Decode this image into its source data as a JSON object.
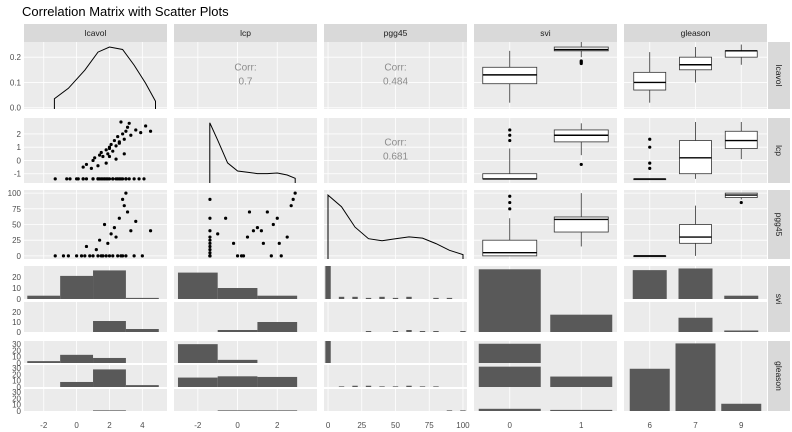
{
  "title": "Correlation Matrix with Scatter Plots",
  "variables": [
    "lcavol",
    "lcp",
    "pgg45",
    "svi",
    "gleason"
  ],
  "svi_levels": [
    "0",
    "1"
  ],
  "colors": {
    "panel": "#ebebeb",
    "grid": "#ffffff",
    "strip": "#d9d9d9",
    "bar": "#595959",
    "point": "#000000",
    "corr_text": "#8c8c8c"
  },
  "chart_data": {
    "type": "scatter",
    "title": "Correlation Matrix with Scatter Plots",
    "correlations": [
      {
        "row": "lcavol",
        "col": "lcp",
        "label": "Corr:",
        "value": "0.7"
      },
      {
        "row": "lcavol",
        "col": "pgg45",
        "label": "Corr:",
        "value": "0.484"
      },
      {
        "row": "lcp",
        "col": "pgg45",
        "label": "Corr:",
        "value": "0.681"
      }
    ],
    "axes": {
      "x": {
        "lcavol": {
          "ticks": [
            "-2",
            "0",
            "2",
            "4"
          ],
          "range": [
            -3.2,
            5.5
          ]
        },
        "lcp": {
          "ticks": [
            "-2",
            "0",
            "2"
          ],
          "range": [
            -3.2,
            4.0
          ]
        },
        "pgg45": {
          "ticks": [
            "0",
            "25",
            "50",
            "75",
            "100"
          ],
          "range": [
            -3,
            103
          ]
        },
        "svi": {
          "ticks": [
            "0",
            "1"
          ]
        },
        "gleason": {
          "ticks": [
            "6",
            "7",
            "9"
          ]
        }
      },
      "y": {
        "lcavol": {
          "ticks": [
            "0.0",
            "0.1",
            "0.2"
          ],
          "range": [
            -0.005,
            0.26
          ]
        },
        "lcp": {
          "ticks": [
            "-1",
            "0",
            "1",
            "2"
          ],
          "range": [
            -1.7,
            3.2
          ]
        },
        "pgg45": {
          "ticks": [
            "0",
            "25",
            "50",
            "75",
            "100"
          ],
          "range": [
            -5,
            105
          ]
        },
        "svi_0": {
          "ticks": [
            "0",
            "10",
            "20"
          ]
        },
        "svi_1": {
          "ticks": [
            "0",
            "10",
            "20"
          ]
        },
        "gleason_6": {
          "ticks": [
            "0",
            "10",
            "20",
            "30"
          ]
        },
        "gleason_7": {
          "ticks": [
            "0",
            "10",
            "20",
            "30"
          ]
        },
        "gleason_9": {
          "ticks": [
            "0",
            "10",
            "20",
            "30"
          ]
        }
      }
    },
    "density": {
      "lcavol": {
        "x": [
          -1.35,
          -0.5,
          0.5,
          1.3,
          2.0,
          2.8,
          3.5,
          4.2,
          4.8
        ],
        "y": [
          0.04,
          0.08,
          0.15,
          0.22,
          0.24,
          0.23,
          0.17,
          0.1,
          0.03
        ]
      },
      "lcp": {
        "x": [
          -1.4,
          -1.0,
          -0.5,
          0.0,
          0.5,
          1.0,
          1.5,
          2.0,
          2.5,
          2.9
        ],
        "y": [
          0.45,
          0.32,
          0.15,
          0.09,
          0.08,
          0.07,
          0.07,
          0.075,
          0.06,
          0.035
        ]
      },
      "pgg45": {
        "x": [
          0,
          10,
          20,
          30,
          40,
          50,
          60,
          70,
          80,
          90,
          100
        ],
        "y": [
          0.022,
          0.018,
          0.011,
          0.007,
          0.0063,
          0.007,
          0.0076,
          0.0072,
          0.0053,
          0.003,
          0.0015
        ]
      }
    },
    "scatter": {
      "lcp_vs_lcavol": {
        "x": [
          -1.3,
          -0.6,
          -0.4,
          0.0,
          0.1,
          0.4,
          0.4,
          0.6,
          1.0,
          1.0,
          1.3,
          1.3,
          1.4,
          1.5,
          1.6,
          1.7,
          1.8,
          1.9,
          2.0,
          2.2,
          2.2,
          2.4,
          2.5,
          2.6,
          2.7,
          2.8,
          3.0,
          3.0,
          3.2,
          3.5,
          3.8,
          4.1,
          1.8,
          2.4,
          2.0,
          2.9
        ],
        "y": [
          -1.39,
          -1.39,
          -1.39,
          -1.39,
          -1.39,
          -1.39,
          -1.39,
          -1.39,
          -1.39,
          -1.39,
          -1.39,
          -1.39,
          -1.39,
          -1.39,
          -1.39,
          -1.39,
          -1.39,
          -1.39,
          -1.39,
          -1.39,
          -1.39,
          -1.39,
          -1.39,
          -1.39,
          -1.39,
          -1.39,
          -1.39,
          -1.39,
          -1.39,
          -1.39,
          -1.39,
          -1.39,
          -0.2,
          0.1,
          0.3,
          0.5
        ]
      },
      "lcp_vs_lcavol_upper": {
        "x": [
          0.4,
          0.6,
          0.9,
          1.0,
          1.1,
          1.3,
          1.4,
          1.5,
          1.6,
          1.8,
          1.9,
          2.0,
          2.1,
          2.2,
          2.3,
          2.4,
          2.5,
          2.6,
          2.8,
          2.9,
          3.0,
          3.1,
          3.3,
          3.6,
          3.9,
          4.2,
          4.5,
          2.7,
          3.2,
          2.0,
          2.6
        ],
        "y": [
          -0.5,
          -0.3,
          -0.6,
          0.0,
          0.2,
          -0.4,
          0.4,
          0.6,
          0.3,
          0.8,
          0.5,
          1.0,
          1.2,
          0.7,
          1.5,
          1.1,
          1.8,
          1.3,
          2.0,
          1.6,
          2.2,
          2.5,
          1.9,
          2.3,
          2.1,
          2.6,
          2.2,
          2.9,
          2.8,
          0.9,
          1.4
        ]
      },
      "pgg45_vs_lcavol": {
        "x": [
          -1.3,
          -0.8,
          -0.5,
          0.0,
          0.3,
          0.5,
          0.8,
          1.0,
          1.3,
          1.5,
          1.6,
          1.8,
          2.0,
          2.2,
          2.5,
          2.7,
          2.8,
          3.0,
          3.5,
          4.0,
          1.2,
          1.9,
          2.4,
          3.3,
          0.6,
          1.7,
          2.6,
          2.9,
          3.1,
          1.4,
          2.1,
          2.3,
          3.6,
          4.5,
          2.8,
          3.0
        ],
        "y": [
          0,
          0,
          0,
          0,
          0,
          0,
          0,
          0,
          0,
          0,
          0,
          0,
          0,
          0,
          0,
          0,
          0,
          0,
          0,
          0,
          10,
          20,
          30,
          40,
          15,
          50,
          60,
          80,
          70,
          25,
          35,
          45,
          55,
          40,
          90,
          100
        ]
      },
      "pgg45_vs_lcp": {
        "x": [
          -1.39,
          -1.39,
          -1.39,
          -1.39,
          -1.39,
          -1.39,
          -1.39,
          -1.39,
          -1.39,
          -1.39,
          -1.39,
          -1.39,
          -1.39,
          -0.6,
          -0.2,
          0.0,
          0.3,
          0.5,
          0.8,
          1.0,
          1.3,
          1.5,
          1.8,
          2.0,
          2.2,
          2.5,
          2.7,
          2.9,
          0.6,
          1.2,
          -1.0,
          2.1,
          2.8,
          0.2,
          1.7
        ],
        "y": [
          0,
          0,
          0,
          0,
          5,
          10,
          15,
          20,
          25,
          30,
          40,
          60,
          90,
          60,
          20,
          0,
          0,
          30,
          40,
          45,
          20,
          70,
          50,
          60,
          0,
          30,
          80,
          100,
          70,
          40,
          35,
          20,
          90,
          0,
          0
        ]
      }
    },
    "boxplots": {
      "svi_lcavol": [
        {
          "level": "0",
          "min": 0.02,
          "q1": 0.095,
          "median": 0.13,
          "q3": 0.16,
          "max": 0.225
        },
        {
          "level": "1",
          "min": 0.2,
          "q1": 0.225,
          "median": 0.23,
          "q3": 0.24,
          "max": 0.26,
          "outliers": [
            0.175,
            0.18,
            0.185
          ]
        }
      ],
      "gleason_lcavol": [
        {
          "level": "6",
          "min": 0.02,
          "q1": 0.07,
          "median": 0.1,
          "q3": 0.14,
          "max": 0.22
        },
        {
          "level": "7",
          "min": 0.1,
          "q1": 0.15,
          "median": 0.17,
          "q3": 0.2,
          "max": 0.24
        },
        {
          "level": "9",
          "min": 0.17,
          "q1": 0.2,
          "median": 0.225,
          "q3": 0.225,
          "max": 0.25
        }
      ],
      "svi_lcp": [
        {
          "level": "0",
          "min": -1.39,
          "q1": -1.39,
          "median": -1.39,
          "q3": -1.0,
          "max": 0.9,
          "outliers": [
            1.5,
            1.9,
            2.3
          ]
        },
        {
          "level": "1",
          "min": 0.4,
          "q1": 1.4,
          "median": 1.9,
          "q3": 2.3,
          "max": 2.8,
          "outliers": [
            -0.3
          ]
        }
      ],
      "gleason_lcp": [
        {
          "level": "6",
          "min": -1.39,
          "q1": -1.39,
          "median": -1.39,
          "q3": -1.39,
          "max": -1.39,
          "outliers": [
            -0.6,
            -0.2,
            1.0,
            1.6
          ]
        },
        {
          "level": "7",
          "min": -1.39,
          "q1": -1.0,
          "median": 0.2,
          "q3": 1.5,
          "max": 2.9
        },
        {
          "level": "9",
          "min": 0.1,
          "q1": 0.9,
          "median": 1.5,
          "q3": 2.2,
          "max": 2.9
        }
      ],
      "svi_pgg45": [
        {
          "level": "0",
          "min": 0,
          "q1": 0,
          "median": 5,
          "q3": 25,
          "max": 60,
          "outliers": [
            75,
            85,
            95
          ]
        },
        {
          "level": "1",
          "min": 15,
          "q1": 38,
          "median": 58,
          "q3": 62,
          "max": 100
        }
      ],
      "gleason_pgg45": [
        {
          "level": "6",
          "min": 0,
          "q1": 0,
          "median": 0,
          "q3": 0,
          "max": 0
        },
        {
          "level": "7",
          "min": 0,
          "q1": 20,
          "median": 30,
          "q3": 50,
          "max": 80
        },
        {
          "level": "9",
          "min": 90,
          "q1": 93,
          "median": 97,
          "q3": 100,
          "max": 100,
          "outliers": [
            85
          ]
        }
      ]
    },
    "bars": {
      "svi_counts": [
        {
          "level": "0",
          "value": 76
        },
        {
          "level": "1",
          "value": 21
        }
      ],
      "gleason_counts": [
        {
          "level": "6",
          "value": 35
        },
        {
          "level": "7",
          "value": 56
        },
        {
          "level": "9",
          "value": 6
        }
      ],
      "svi_by_gleason": [
        {
          "svi": "0",
          "gleason": "6",
          "value": 35
        },
        {
          "svi": "0",
          "gleason": "7",
          "value": 37
        },
        {
          "svi": "0",
          "gleason": "9",
          "value": 4
        },
        {
          "svi": "1",
          "gleason": "6",
          "value": 0
        },
        {
          "svi": "1",
          "gleason": "7",
          "value": 19
        },
        {
          "svi": "1",
          "gleason": "9",
          "value": 2
        }
      ],
      "gleason_by_svi": [
        {
          "gleason": "6",
          "svi": "0",
          "value": 35
        },
        {
          "gleason": "6",
          "svi": "1",
          "value": 0
        },
        {
          "gleason": "7",
          "svi": "0",
          "value": 37
        },
        {
          "gleason": "7",
          "svi": "1",
          "value": 19
        },
        {
          "gleason": "9",
          "svi": "0",
          "value": 4
        },
        {
          "gleason": "9",
          "svi": "1",
          "value": 2
        }
      ]
    },
    "histograms": {
      "lcavol_by_svi": {
        "0": [
          {
            "x0": -3.0,
            "x1": -1.0,
            "value": 3
          },
          {
            "x0": -1.0,
            "x1": 1.0,
            "value": 21
          },
          {
            "x0": 1.0,
            "x1": 3.0,
            "value": 26
          },
          {
            "x0": 3.0,
            "x1": 5.0,
            "value": 1
          }
        ],
        "1": [
          {
            "x0": 1.0,
            "x1": 3.0,
            "value": 11
          },
          {
            "x0": 3.0,
            "x1": 5.0,
            "value": 3
          }
        ]
      },
      "lcp_by_svi": {
        "0": [
          {
            "x0": -3.0,
            "x1": -1.0,
            "value": 24
          },
          {
            "x0": -1.0,
            "x1": 1.0,
            "value": 10
          },
          {
            "x0": 1.0,
            "x1": 3.0,
            "value": 3
          }
        ],
        "1": [
          {
            "x0": -1.0,
            "x1": 1.0,
            "value": 2
          },
          {
            "x0": 1.0,
            "x1": 3.0,
            "value": 10
          }
        ]
      },
      "lcavol_by_gleason": {
        "6": [
          {
            "x0": -3.0,
            "x1": -1.0,
            "value": 3
          },
          {
            "x0": -1.0,
            "x1": 1.0,
            "value": 13
          },
          {
            "x0": 1.0,
            "x1": 3.0,
            "value": 8
          }
        ],
        "7": [
          {
            "x0": -3.0,
            "x1": -1.0,
            "value": 0
          },
          {
            "x0": -1.0,
            "x1": 1.0,
            "value": 8
          },
          {
            "x0": 1.0,
            "x1": 3.0,
            "value": 28
          },
          {
            "x0": 3.0,
            "x1": 5.0,
            "value": 3
          }
        ],
        "9": [
          {
            "x0": 1.0,
            "x1": 3.0,
            "value": 1
          }
        ]
      },
      "lcp_by_gleason": {
        "6": [
          {
            "x0": -3.0,
            "x1": -1.0,
            "value": 30
          },
          {
            "x0": -1.0,
            "x1": 1.0,
            "value": 5
          }
        ],
        "7": [
          {
            "x0": -3.0,
            "x1": -1.0,
            "value": 15
          },
          {
            "x0": -1.0,
            "x1": 1.0,
            "value": 17
          },
          {
            "x0": 1.0,
            "x1": 3.0,
            "value": 16
          }
        ],
        "9": [
          {
            "x0": -1.0,
            "x1": 1.0,
            "value": 1
          },
          {
            "x0": 1.0,
            "x1": 3.0,
            "value": 1
          }
        ]
      },
      "pgg45_by_svi": {
        "0": [
          {
            "x0": -2,
            "x1": 2,
            "value": 30
          },
          {
            "x0": 8,
            "x1": 12,
            "value": 2
          },
          {
            "x0": 18,
            "x1": 22,
            "value": 2
          },
          {
            "x0": 28,
            "x1": 32,
            "value": 1
          },
          {
            "x0": 38,
            "x1": 42,
            "value": 2
          },
          {
            "x0": 48,
            "x1": 52,
            "value": 1
          },
          {
            "x0": 58,
            "x1": 62,
            "value": 2
          },
          {
            "x0": 78,
            "x1": 82,
            "value": 1
          },
          {
            "x0": 88,
            "x1": 92,
            "value": 1
          }
        ],
        "1": [
          {
            "x0": 28,
            "x1": 32,
            "value": 1
          },
          {
            "x0": 48,
            "x1": 52,
            "value": 1
          },
          {
            "x0": 58,
            "x1": 62,
            "value": 2
          },
          {
            "x0": 68,
            "x1": 72,
            "value": 1
          },
          {
            "x0": 78,
            "x1": 82,
            "value": 1
          },
          {
            "x0": 98,
            "x1": 102,
            "value": 1
          }
        ]
      },
      "pgg45_by_gleason": {
        "6": [
          {
            "x0": -2,
            "x1": 2,
            "value": 35
          }
        ],
        "7": [
          {
            "x0": 8,
            "x1": 12,
            "value": 1
          },
          {
            "x0": 18,
            "x1": 22,
            "value": 2
          },
          {
            "x0": 28,
            "x1": 32,
            "value": 2
          },
          {
            "x0": 38,
            "x1": 42,
            "value": 1
          },
          {
            "x0": 48,
            "x1": 52,
            "value": 1
          },
          {
            "x0": 58,
            "x1": 62,
            "value": 2
          },
          {
            "x0": 68,
            "x1": 72,
            "value": 1
          },
          {
            "x0": 78,
            "x1": 82,
            "value": 1
          }
        ],
        "9": [
          {
            "x0": 88,
            "x1": 92,
            "value": 1
          },
          {
            "x0": 98,
            "x1": 102,
            "value": 1
          }
        ]
      }
    }
  }
}
